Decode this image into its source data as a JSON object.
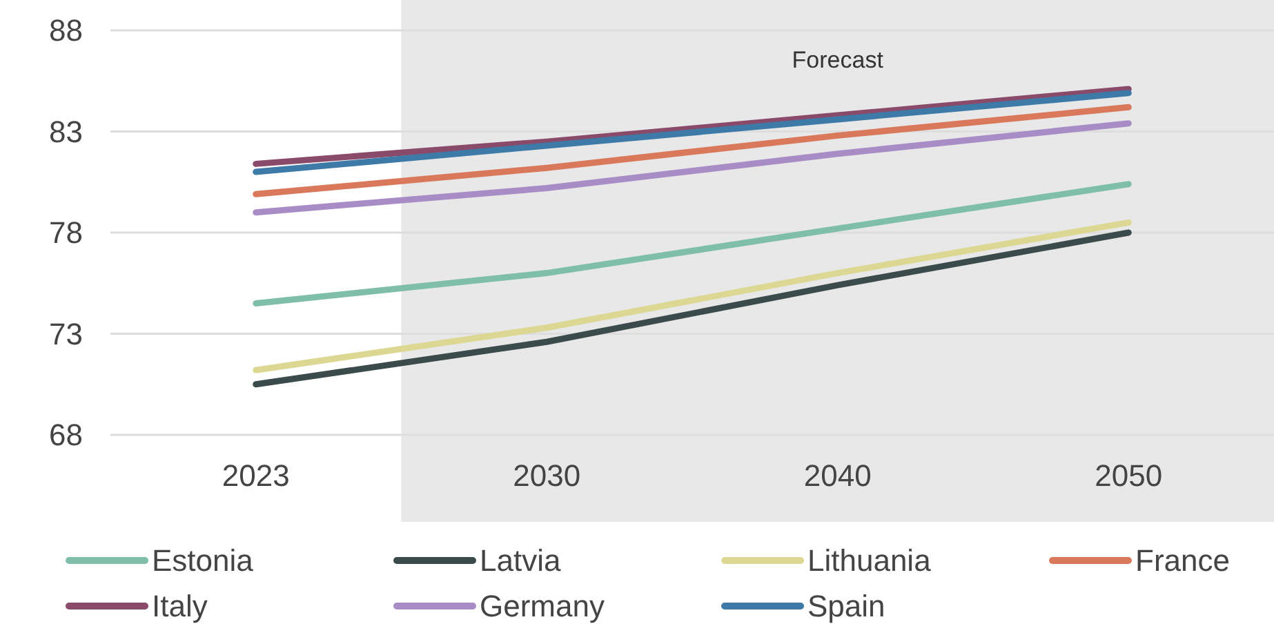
{
  "chart_data": {
    "type": "line",
    "categories": [
      "2023",
      "2030",
      "2040",
      "2050"
    ],
    "series": [
      {
        "name": "Estonia",
        "color": "#7fbfaa",
        "values": [
          74.5,
          76.0,
          78.2,
          80.4
        ]
      },
      {
        "name": "Latvia",
        "color": "#3b4a4a",
        "values": [
          70.5,
          72.6,
          75.4,
          78.0
        ]
      },
      {
        "name": "Lithuania",
        "color": "#dcd894",
        "values": [
          71.2,
          73.3,
          76.0,
          78.5
        ]
      },
      {
        "name": "France",
        "color": "#d9785a",
        "values": [
          79.9,
          81.2,
          82.8,
          84.2
        ]
      },
      {
        "name": "Italy",
        "color": "#8a4a6a",
        "values": [
          81.4,
          82.5,
          83.8,
          85.1
        ]
      },
      {
        "name": "Germany",
        "color": "#a88cc6",
        "values": [
          79.0,
          80.2,
          81.9,
          83.4
        ]
      },
      {
        "name": "Spain",
        "color": "#3d7aa8",
        "values": [
          81.0,
          82.3,
          83.6,
          84.9
        ]
      }
    ],
    "ylim": [
      68,
      88
    ],
    "yticks": [
      68,
      73,
      78,
      83,
      88
    ],
    "grid": "y",
    "legend": "bottom",
    "marker": "none",
    "line_style": "solid",
    "bands": [
      {
        "axis": "x",
        "from": "2030",
        "to": "2050",
        "label": "Forecast",
        "color": "#e8e8e8"
      }
    ]
  }
}
